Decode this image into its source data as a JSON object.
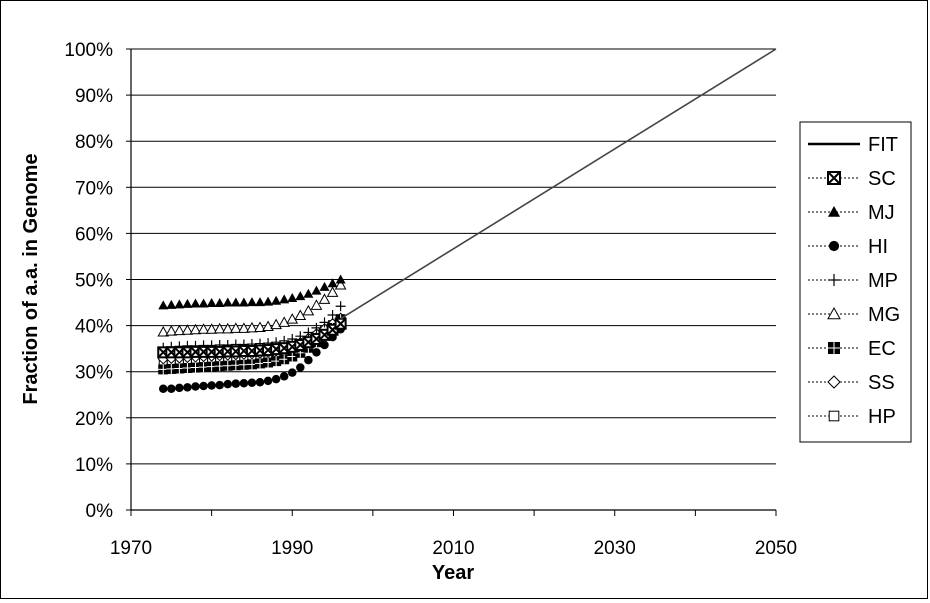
{
  "chart_data": {
    "type": "line",
    "xlabel": "Year",
    "ylabel": "Fraction of a.a. in Genome",
    "xlim": [
      1970,
      2050
    ],
    "ylim": [
      0,
      100
    ],
    "x_ticks": [
      "1970",
      "1990",
      "2010",
      "2030",
      "2050"
    ],
    "y_ticks": [
      "0%",
      "10%",
      "20%",
      "30%",
      "40%",
      "50%",
      "60%",
      "70%",
      "80%",
      "90%",
      "100%"
    ],
    "grid": "horizontal major gridlines",
    "legend_position": "right",
    "series": [
      {
        "name": "FIT",
        "marker": "line",
        "x": [
          1996,
          2050
        ],
        "y": [
          41.5,
          100
        ]
      },
      {
        "name": "SC",
        "marker": "crossed-square",
        "x": [
          1974,
          1975,
          1976,
          1977,
          1978,
          1979,
          1980,
          1981,
          1982,
          1983,
          1984,
          1985,
          1986,
          1987,
          1988,
          1989,
          1990,
          1991,
          1992,
          1993,
          1994,
          1995,
          1996
        ],
        "y": [
          34.2,
          34.2,
          34.2,
          34.2,
          34.3,
          34.3,
          34.3,
          34.3,
          34.4,
          34.4,
          34.5,
          34.5,
          34.6,
          34.7,
          34.9,
          35.1,
          35.4,
          35.8,
          36.4,
          37.1,
          38.0,
          39.1,
          40.4
        ]
      },
      {
        "name": "MJ",
        "marker": "filled-triangle",
        "x": [
          1974,
          1975,
          1976,
          1977,
          1978,
          1979,
          1980,
          1981,
          1982,
          1983,
          1984,
          1985,
          1986,
          1987,
          1988,
          1989,
          1990,
          1991,
          1992,
          1993,
          1994,
          1995,
          1996
        ],
        "y": [
          44.4,
          44.5,
          44.6,
          44.7,
          44.8,
          44.8,
          44.9,
          44.9,
          45.0,
          45.0,
          45.0,
          45.1,
          45.1,
          45.2,
          45.4,
          45.7,
          46.0,
          46.4,
          46.9,
          47.6,
          48.4,
          49.2,
          50.0
        ]
      },
      {
        "name": "HI",
        "marker": "filled-circle",
        "x": [
          1974,
          1975,
          1976,
          1977,
          1978,
          1979,
          1980,
          1981,
          1982,
          1983,
          1984,
          1985,
          1986,
          1987,
          1988,
          1989,
          1990,
          1991,
          1992,
          1993,
          1994,
          1995,
          1996
        ],
        "y": [
          26.3,
          26.3,
          26.5,
          26.6,
          26.8,
          26.9,
          27.0,
          27.1,
          27.3,
          27.4,
          27.5,
          27.6,
          27.7,
          28.0,
          28.4,
          29.0,
          29.8,
          30.9,
          32.5,
          34.2,
          35.8,
          37.5,
          39.2
        ]
      },
      {
        "name": "MP",
        "marker": "plus",
        "x": [
          1974,
          1975,
          1976,
          1977,
          1978,
          1979,
          1980,
          1981,
          1982,
          1983,
          1984,
          1985,
          1986,
          1987,
          1988,
          1989,
          1990,
          1991,
          1992,
          1993,
          1994,
          1995,
          1996
        ],
        "y": [
          35.2,
          35.4,
          35.5,
          35.6,
          35.6,
          35.7,
          35.7,
          35.8,
          35.8,
          35.9,
          35.9,
          36.0,
          36.1,
          36.2,
          36.4,
          36.7,
          37.1,
          37.7,
          38.5,
          39.5,
          40.7,
          42.3,
          44.2
        ]
      },
      {
        "name": "MG",
        "marker": "open-triangle",
        "x": [
          1974,
          1975,
          1976,
          1977,
          1978,
          1979,
          1980,
          1981,
          1982,
          1983,
          1984,
          1985,
          1986,
          1987,
          1988,
          1989,
          1990,
          1991,
          1992,
          1993,
          1994,
          1995,
          1996
        ],
        "y": [
          38.6,
          38.8,
          38.9,
          39.0,
          39.1,
          39.2,
          39.2,
          39.3,
          39.3,
          39.4,
          39.4,
          39.5,
          39.6,
          39.8,
          40.2,
          40.7,
          41.4,
          42.2,
          43.2,
          44.4,
          45.7,
          47.2,
          48.8
        ]
      },
      {
        "name": "EC",
        "marker": "crossed-filled-square",
        "x": [
          1974,
          1975,
          1976,
          1977,
          1978,
          1979,
          1980,
          1981,
          1982,
          1983,
          1984,
          1985,
          1986,
          1987,
          1988,
          1989,
          1990,
          1991,
          1992,
          1993,
          1994,
          1995,
          1996
        ],
        "y": [
          30.5,
          30.6,
          30.7,
          30.8,
          30.9,
          31.0,
          31.1,
          31.2,
          31.3,
          31.4,
          31.5,
          31.6,
          31.8,
          32.0,
          32.3,
          32.7,
          33.3,
          34.1,
          35.2,
          36.4,
          37.8,
          39.5,
          41.3
        ]
      },
      {
        "name": "SS",
        "marker": "open-diamond",
        "x": [
          1974,
          1975,
          1976,
          1977,
          1978,
          1979,
          1980,
          1981,
          1982,
          1983,
          1984,
          1985,
          1986,
          1987,
          1988,
          1989,
          1990,
          1991,
          1992,
          1993,
          1994,
          1995,
          1996
        ],
        "y": [
          32.8,
          32.9,
          33.0,
          33.1,
          33.2,
          33.3,
          33.4,
          33.5,
          33.6,
          33.7,
          33.8,
          33.9,
          34.0,
          34.2,
          34.5,
          34.9,
          35.5,
          36.3,
          37.2,
          38.2,
          39.3,
          40.4,
          41.6
        ]
      },
      {
        "name": "HP",
        "marker": "open-square",
        "x": [
          1974,
          1975,
          1976,
          1977,
          1978,
          1979,
          1980,
          1981,
          1982,
          1983,
          1984,
          1985,
          1986,
          1987,
          1988,
          1989,
          1990,
          1991,
          1992,
          1993,
          1994,
          1995,
          1996
        ],
        "y": [
          32.0,
          32.1,
          32.2,
          32.3,
          32.4,
          32.5,
          32.6,
          32.7,
          32.8,
          32.9,
          33.0,
          33.1,
          33.2,
          33.4,
          33.7,
          34.1,
          34.7,
          35.5,
          36.5,
          37.7,
          38.9,
          40.2,
          41.5
        ]
      }
    ]
  }
}
